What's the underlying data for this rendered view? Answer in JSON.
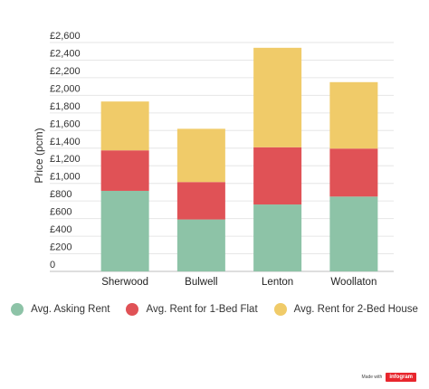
{
  "chart_data": {
    "type": "bar",
    "stacked": true,
    "categories": [
      "Sherwood",
      "Bulwell",
      "Lenton",
      "Woollaton"
    ],
    "series": [
      {
        "name": "Avg. Asking Rent",
        "color": "#8dc3a7",
        "values": [
          915,
          590,
          760,
          850
        ]
      },
      {
        "name": "Avg. Rent for 1-Bed Flat",
        "color": "#e05256",
        "values": [
          460,
          425,
          650,
          545
        ]
      },
      {
        "name": "Avg. Rent for 2-Bed House",
        "color": "#f0cb69",
        "values": [
          555,
          605,
          1130,
          755
        ]
      }
    ],
    "ylabel": "Price (pcm)",
    "xlabel": "",
    "ylim": [
      0,
      2600
    ],
    "ytick_values": [
      0,
      200,
      400,
      600,
      800,
      1000,
      1200,
      1400,
      1600,
      1800,
      2000,
      2200,
      2400,
      2600
    ],
    "ytick_labels": [
      "0",
      "£200",
      "£400",
      "£600",
      "£800",
      "£1,000",
      "£1,200",
      "£1,400",
      "£1,600",
      "£1,800",
      "£2,000",
      "£2,200",
      "£2,400",
      "£2,600"
    ],
    "grid": true,
    "legend_position": "bottom"
  },
  "credit": {
    "text": "Made with",
    "brand": "infogram"
  }
}
